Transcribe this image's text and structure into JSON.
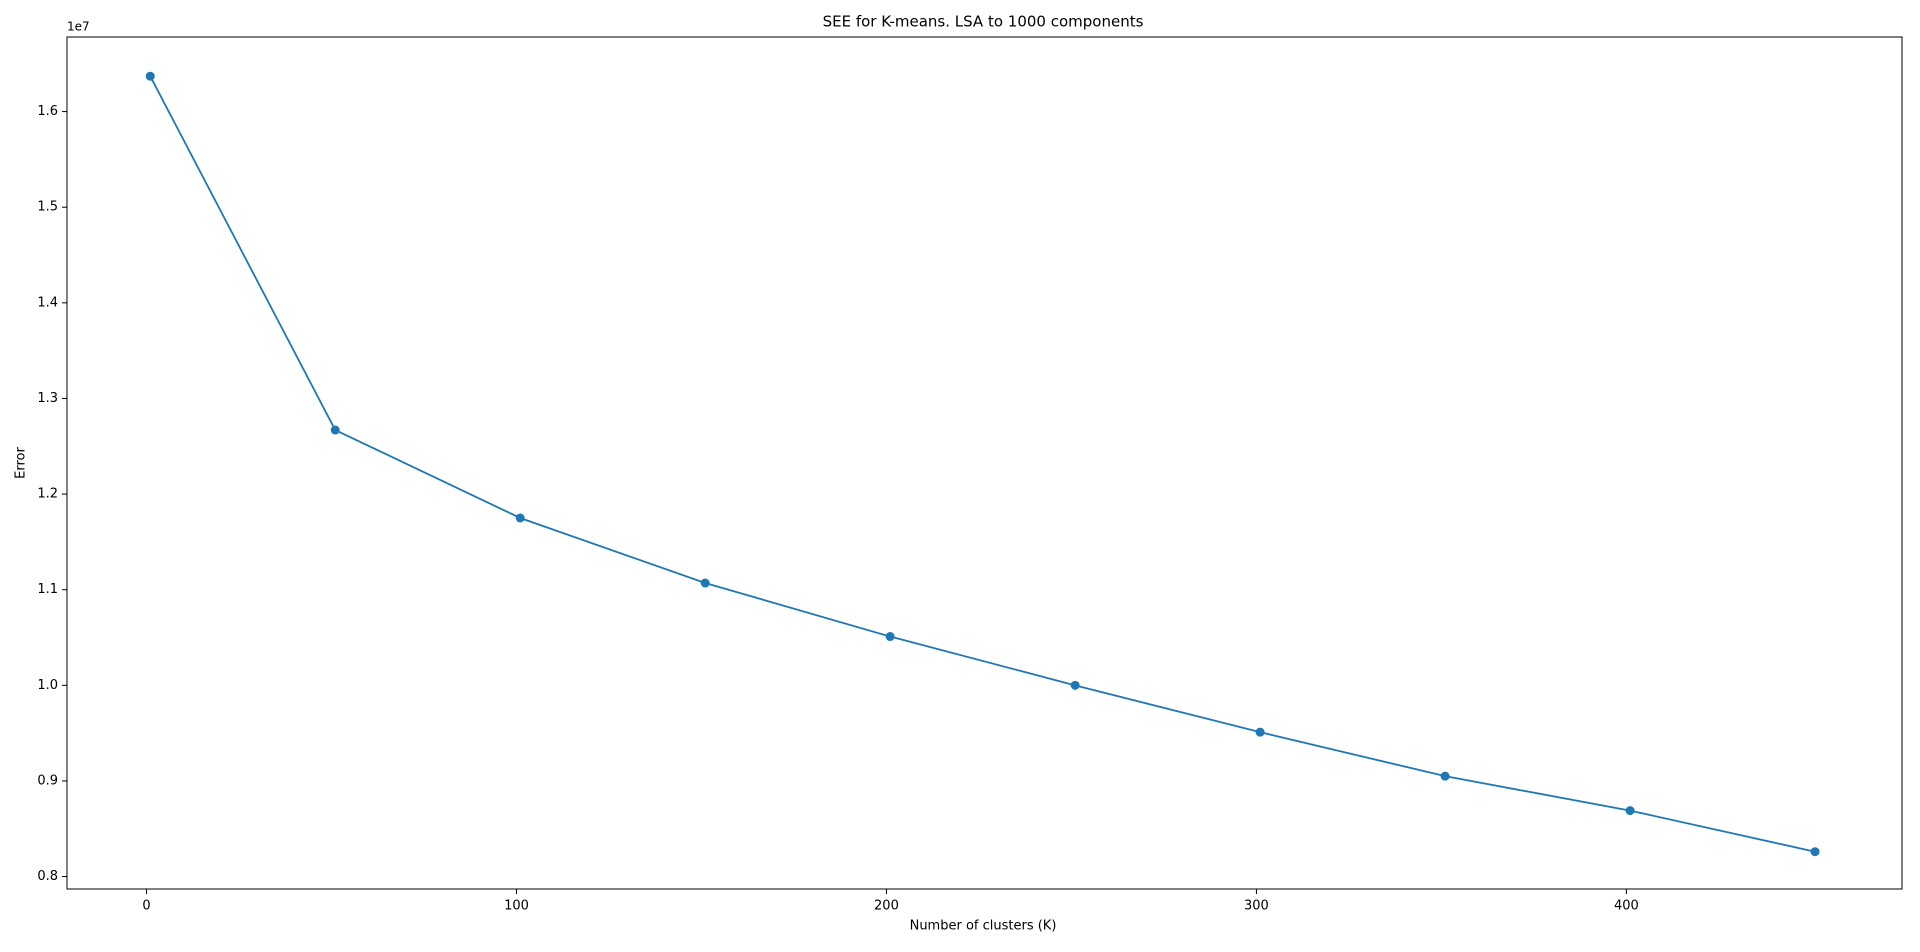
{
  "chart_data": {
    "type": "line",
    "title": "SEE for K-means. LSA to 1000 components",
    "x_label": "Number of clusters (K)",
    "y_label": "Error",
    "y_offset_label": "1e7",
    "x": [
      1,
      51,
      101,
      151,
      201,
      251,
      301,
      351,
      401,
      451
    ],
    "series": [
      {
        "name": "Error",
        "color": "#1f77b4",
        "values": [
          1.637,
          1.267,
          1.175,
          1.107,
          1.051,
          1.0,
          0.951,
          0.905,
          0.869,
          0.826
        ]
      }
    ],
    "xlim": [
      -21.5,
      474.5
    ],
    "xticks": [
      0,
      100,
      200,
      300,
      400
    ],
    "ylim": [
      0.787,
      1.678
    ],
    "yticks": [
      0.8,
      0.9,
      {
        "value": 1.0,
        "label": "1.0"
      },
      1.1,
      1.2,
      1.3,
      1.4,
      1.5,
      1.6
    ],
    "grid": false,
    "markers": true
  }
}
